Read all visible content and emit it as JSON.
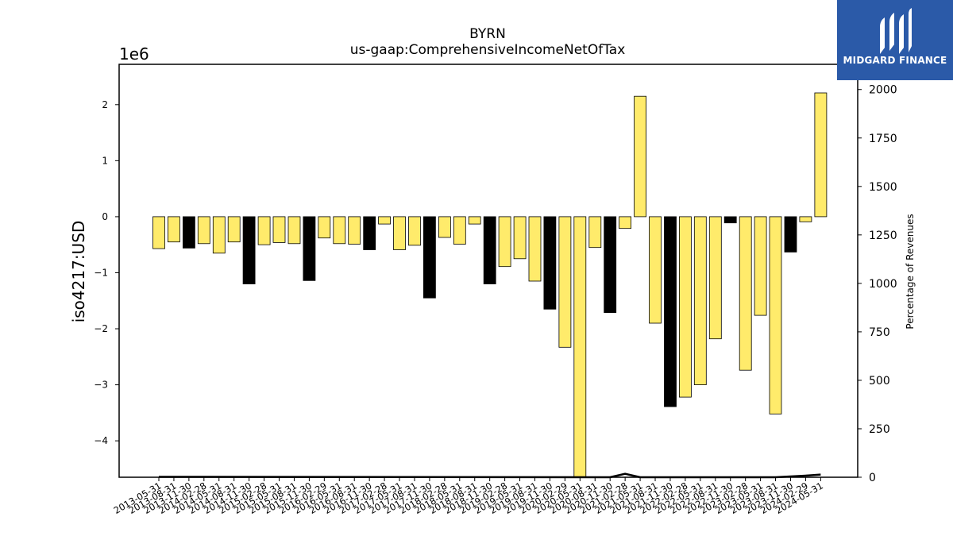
{
  "chart_data": {
    "type": "bar",
    "title": "BYRN",
    "subtitle": "us-gaap:ComprehensiveIncomeNetOfTax",
    "ylabel": "iso4217:USD",
    "y_offset_label": "1e6",
    "y2label": "Percentage of Revenues",
    "ylim": [
      -4.65,
      2.72
    ],
    "y2lim": [
      0,
      2130
    ],
    "yticks": [
      "2",
      "1",
      "0",
      "−1",
      "−2",
      "−3",
      "−4"
    ],
    "y2ticks": [
      "2000",
      "1750",
      "1500",
      "1250",
      "1000",
      "750",
      "500",
      "250",
      "0"
    ],
    "categories": [
      "2013-05-31",
      "2013-08-31",
      "2013-11-30",
      "2014-02-28",
      "2014-05-31",
      "2014-08-31",
      "2014-11-30",
      "2015-02-28",
      "2015-05-31",
      "2015-08-31",
      "2015-11-30",
      "2016-02-29",
      "2016-05-31",
      "2016-08-31",
      "2016-11-30",
      "2017-02-28",
      "2017-05-31",
      "2017-08-31",
      "2017-11-30",
      "2018-02-28",
      "2018-05-31",
      "2018-08-31",
      "2018-11-30",
      "2019-02-28",
      "2019-05-31",
      "2019-08-31",
      "2019-11-30",
      "2020-02-29",
      "2020-05-31",
      "2020-08-31",
      "2020-11-30",
      "2021-02-28",
      "2021-05-31",
      "2021-08-31",
      "2021-11-30",
      "2022-02-28",
      "2022-05-31",
      "2022-08-31",
      "2022-11-30",
      "2023-02-28",
      "2023-05-31",
      "2023-08-31",
      "2023-11-30",
      "2024-02-29",
      "2024-05-31"
    ],
    "values": [
      -0.57,
      -0.45,
      -0.56,
      -0.48,
      -0.65,
      -0.45,
      -1.2,
      -0.5,
      -0.46,
      -0.48,
      -1.14,
      -0.38,
      -0.48,
      -0.49,
      -0.59,
      -0.13,
      -0.59,
      -0.51,
      -1.45,
      -0.37,
      -0.49,
      -0.13,
      -1.2,
      -0.89,
      -0.75,
      -1.15,
      -1.65,
      -2.33,
      -4.7,
      -0.55,
      -1.71,
      -0.21,
      2.15,
      -1.9,
      -3.39,
      -3.22,
      -3.0,
      -2.18,
      -0.11,
      -2.74,
      -1.76,
      -3.52,
      -0.63,
      -0.09,
      2.21
    ],
    "colors": [
      "yellow",
      "yellow",
      "black",
      "yellow",
      "yellow",
      "yellow",
      "black",
      "yellow",
      "yellow",
      "yellow",
      "black",
      "yellow",
      "yellow",
      "yellow",
      "black",
      "yellow",
      "yellow",
      "yellow",
      "black",
      "yellow",
      "yellow",
      "yellow",
      "black",
      "yellow",
      "yellow",
      "yellow",
      "black",
      "yellow",
      "yellow",
      "yellow",
      "black",
      "yellow",
      "yellow",
      "yellow",
      "black",
      "yellow",
      "yellow",
      "yellow",
      "black",
      "yellow",
      "yellow",
      "yellow",
      "black",
      "yellow",
      "yellow"
    ],
    "series_colors": {
      "yellow": "#ffeb6b",
      "black": "#000000"
    },
    "percentage_line": [
      {
        "x": "2013-05-31",
        "y": 2
      },
      {
        "x": "2013-08-31",
        "y": 2
      },
      {
        "x": "2020-11-30",
        "y": 0
      },
      {
        "x": "2021-02-28",
        "y": 18
      },
      {
        "x": "2021-05-31",
        "y": 0
      },
      {
        "x": "2023-08-31",
        "y": 0
      },
      {
        "x": "2023-11-30",
        "y": 4
      },
      {
        "x": "2024-02-29",
        "y": 8
      },
      {
        "x": "2024-05-31",
        "y": 14
      }
    ],
    "grid": false
  },
  "logo": {
    "brand": "MIDGARD FINANCE"
  }
}
